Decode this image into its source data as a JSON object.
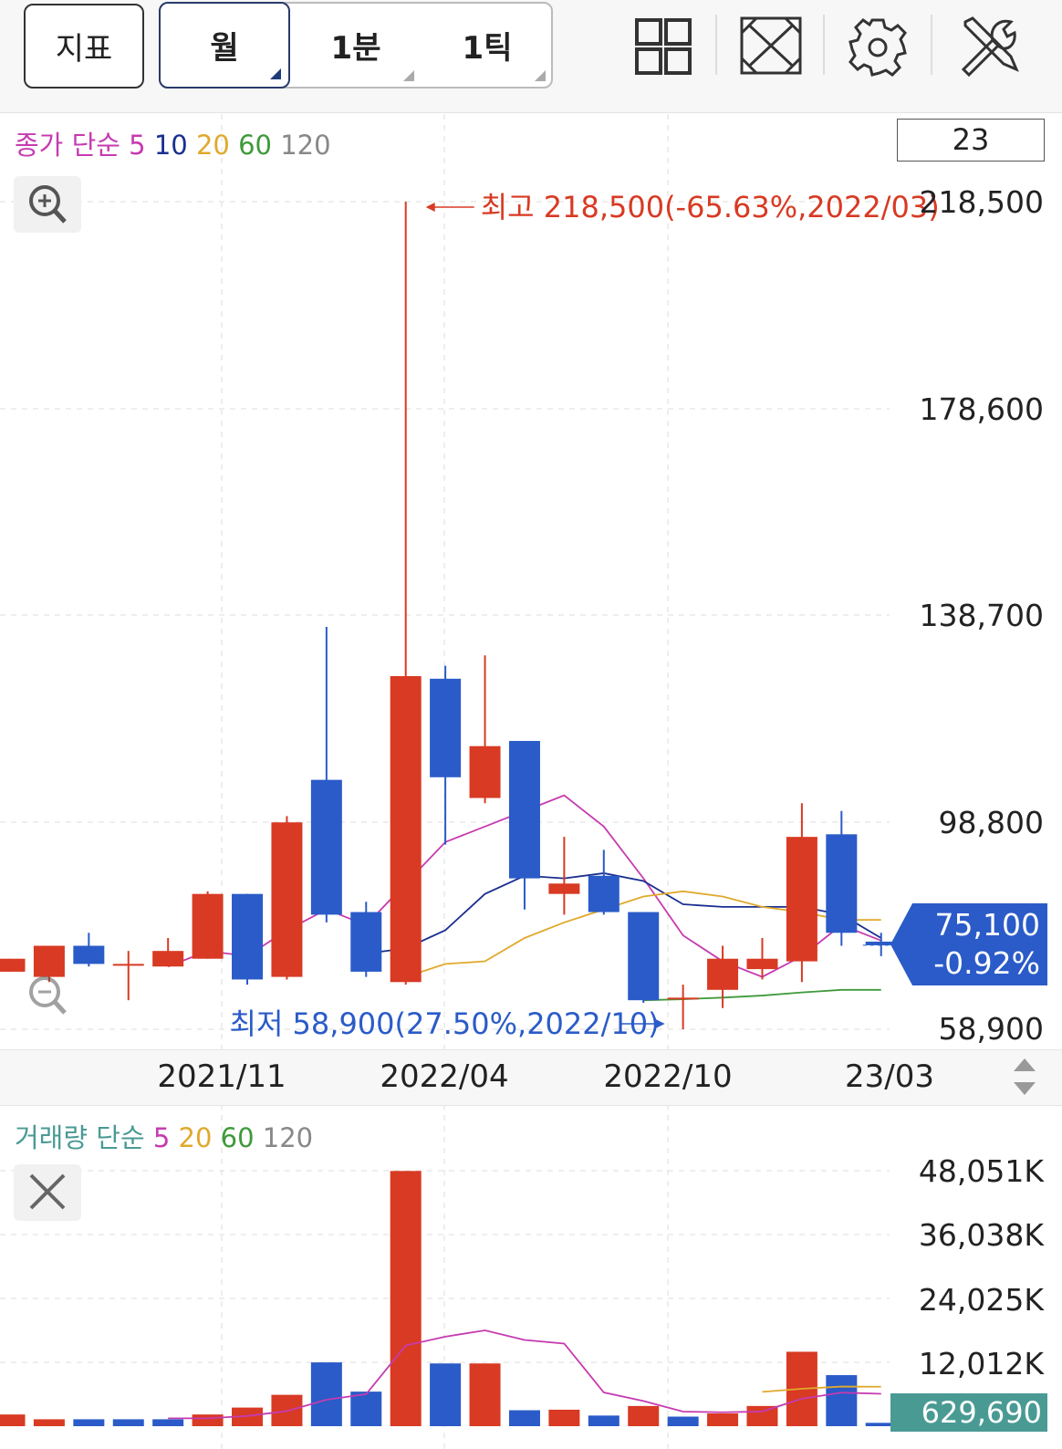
{
  "toolbar": {
    "indicator_label": "지표",
    "period_month_label": "월",
    "period_minute_label": "1분",
    "period_tick_label": "1틱",
    "icons": [
      "layout-grid-icon",
      "fullscreen-icon",
      "settings-gear-icon",
      "tools-icon"
    ]
  },
  "price_panel": {
    "legend": {
      "prefix": "종가 단순",
      "ma": [
        "5",
        "10",
        "20",
        "60",
        "120"
      ]
    },
    "count": "23",
    "high_annotation": "최고 218,500(-65.63%,2022/03)",
    "low_annotation": "최저 58,900(27.50%,2022/10)",
    "y_ticks": [
      "218,500",
      "178,600",
      "138,700",
      "98,800",
      "58,900"
    ],
    "current_price": "75,100",
    "current_change": "-0.92%",
    "zoom_in_icon": "zoom-in-icon",
    "zoom_out_icon": "zoom-out-icon"
  },
  "x_axis": {
    "labels": [
      "2021/11",
      "2022/04",
      "2022/10",
      "23/03"
    ],
    "scroll_icon": "up-down-arrows-icon"
  },
  "volume_panel": {
    "legend": {
      "prefix": "거래량 단순",
      "ma": [
        "5",
        "20",
        "60",
        "120"
      ]
    },
    "y_ticks": [
      "48,051K",
      "36,038K",
      "24,025K",
      "12,012K"
    ],
    "current_volume": "629,690",
    "close_icon": "close-icon"
  },
  "colors": {
    "up": "#d83a23",
    "down": "#2a5bc8",
    "ma5": "#c63bb0",
    "ma10": "#1a2f8f",
    "ma20": "#e0a92d",
    "ma60": "#3f9a3a",
    "ma120": "#888888"
  },
  "chart_data": [
    {
      "type": "candlestick",
      "title": "",
      "ylim": [
        58900,
        218500
      ],
      "x": [
        "2021/05",
        "2021/06",
        "2021/07",
        "2021/08",
        "2021/09",
        "2021/10",
        "2021/11",
        "2021/12",
        "2022/01",
        "2022/02",
        "2022/03",
        "2022/04",
        "2022/05",
        "2022/06",
        "2022/07",
        "2022/08",
        "2022/09",
        "2022/10",
        "2022/11",
        "2022/12",
        "2023/01",
        "2023/02",
        "2023/03"
      ],
      "series": [
        {
          "open": 70000,
          "close": 72500,
          "high": 72500,
          "low": 70000
        },
        {
          "open": 69000,
          "close": 75000,
          "high": 75000,
          "low": 68000
        },
        {
          "open": 75000,
          "close": 71500,
          "high": 77500,
          "low": 71000
        },
        {
          "open": 71500,
          "close": 71500,
          "high": 74000,
          "low": 64500
        },
        {
          "open": 71000,
          "close": 74000,
          "high": 76500,
          "low": 71000
        },
        {
          "open": 72500,
          "close": 85000,
          "high": 85500,
          "low": 72500
        },
        {
          "open": 85000,
          "close": 68500,
          "high": 85000,
          "low": 67500
        },
        {
          "open": 69000,
          "close": 98800,
          "high": 100000,
          "low": 68500
        },
        {
          "open": 107000,
          "close": 81000,
          "high": 136500,
          "low": 79500
        },
        {
          "open": 81500,
          "close": 70000,
          "high": 83500,
          "low": 69000
        },
        {
          "open": 68000,
          "close": 127000,
          "high": 218500,
          "low": 67500
        },
        {
          "open": 126500,
          "close": 107500,
          "high": 129000,
          "low": 94500
        },
        {
          "open": 103500,
          "close": 113500,
          "high": 131000,
          "low": 102500
        },
        {
          "open": 114500,
          "close": 88000,
          "high": 114500,
          "low": 82000
        },
        {
          "open": 85000,
          "close": 87000,
          "high": 96000,
          "low": 81000
        },
        {
          "open": 88500,
          "close": 81500,
          "high": 93500,
          "low": 81000
        },
        {
          "open": 81500,
          "close": 64500,
          "high": 81500,
          "low": 64000
        },
        {
          "open": 65000,
          "close": 65000,
          "high": 67500,
          "low": 58900
        },
        {
          "open": 66500,
          "close": 72500,
          "high": 75000,
          "low": 63000
        },
        {
          "open": 70500,
          "close": 72500,
          "high": 76500,
          "low": 68500
        },
        {
          "open": 72000,
          "close": 96000,
          "high": 102500,
          "low": 68000
        },
        {
          "open": 96500,
          "close": 77500,
          "high": 101000,
          "low": 75000
        },
        {
          "open": 75800,
          "close": 75100,
          "high": 77500,
          "low": 73000
        }
      ],
      "moving_averages": {
        "5": [
          null,
          null,
          null,
          null,
          71000,
          74000,
          73000,
          78000,
          82000,
          79000,
          87000,
          95000,
          98000,
          101000,
          104000,
          98000,
          88000,
          77000,
          72000,
          69000,
          73000,
          79000,
          76000
        ],
        "10": [
          null,
          null,
          null,
          null,
          null,
          null,
          null,
          null,
          null,
          73500,
          74500,
          78000,
          85000,
          88500,
          88000,
          89000,
          87500,
          83000,
          82500,
          82500,
          82500,
          81000,
          76500
        ],
        "20": [
          null,
          null,
          null,
          null,
          null,
          null,
          null,
          null,
          null,
          null,
          69000,
          71500,
          72000,
          76500,
          79500,
          82000,
          84500,
          85500,
          84500,
          82500,
          81500,
          80000,
          80000
        ],
        "60": [
          null,
          null,
          null,
          null,
          null,
          null,
          null,
          null,
          null,
          null,
          null,
          null,
          null,
          null,
          null,
          null,
          64500,
          64700,
          65000,
          65400,
          66000,
          66500,
          66500
        ],
        "120": [
          null,
          null,
          null,
          null,
          null,
          null,
          null,
          null,
          null,
          null,
          null,
          null,
          null,
          null,
          null,
          null,
          null,
          null,
          null,
          null,
          null,
          null,
          null
        ]
      }
    },
    {
      "type": "bar",
      "title": "",
      "ylim": [
        0,
        48051
      ],
      "unit": "K",
      "x": [
        "2021/05",
        "2021/06",
        "2021/07",
        "2021/08",
        "2021/09",
        "2021/10",
        "2021/11",
        "2021/12",
        "2022/01",
        "2022/02",
        "2022/03",
        "2022/04",
        "2022/05",
        "2022/06",
        "2022/07",
        "2022/08",
        "2022/09",
        "2022/10",
        "2022/11",
        "2022/12",
        "2023/01",
        "2023/02",
        "2023/03"
      ],
      "values": [
        2200,
        1300,
        1300,
        1300,
        1300,
        2200,
        3500,
        5900,
        12000,
        6500,
        48000,
        11800,
        11800,
        3000,
        3100,
        2000,
        3800,
        1800,
        2400,
        3800,
        14000,
        9600,
        630
      ],
      "directions": [
        "up",
        "up",
        "down",
        "down",
        "down",
        "up",
        "up",
        "up",
        "down",
        "down",
        "up",
        "down",
        "up",
        "down",
        "up",
        "down",
        "up",
        "down",
        "up",
        "up",
        "up",
        "down",
        "down"
      ]
    }
  ]
}
